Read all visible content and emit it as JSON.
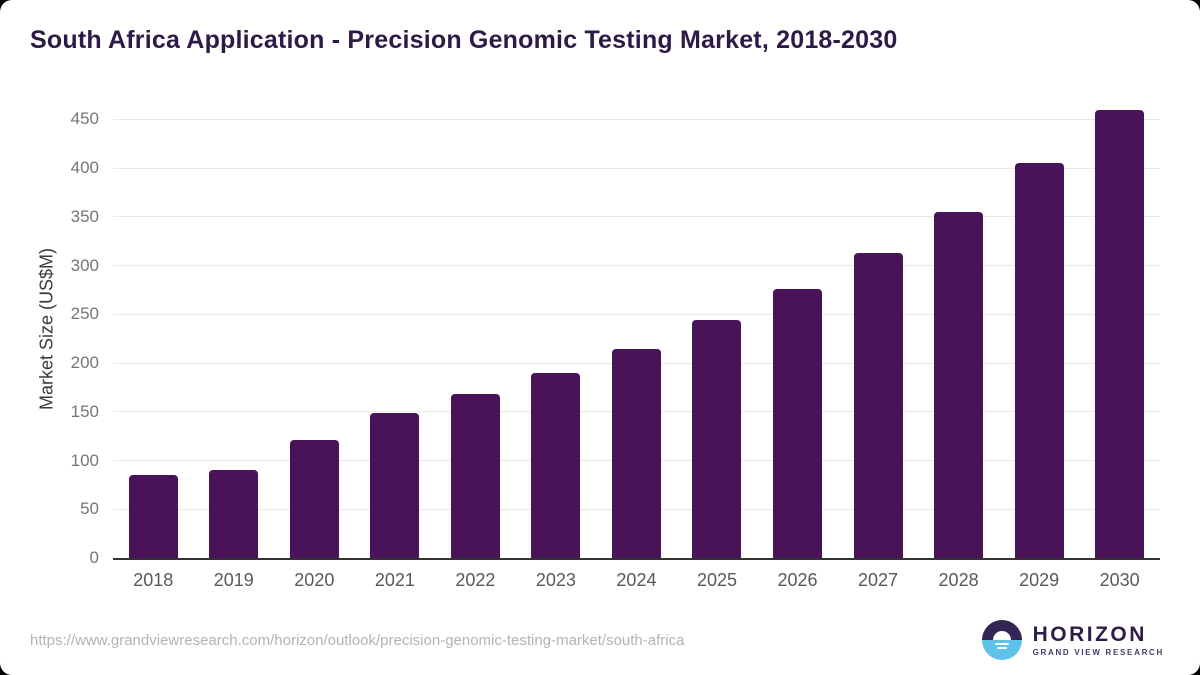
{
  "page": {
    "source_url": "https://www.grandviewresearch.com/horizon/outlook/precision-genomic-testing-market/south-africa"
  },
  "logo": {
    "name": "HORIZON",
    "subtitle": "GRAND VIEW RESEARCH",
    "icon": "sunset-over-water-icon"
  },
  "colors": {
    "bar": "#4a1259",
    "title_text": "#2e1a47",
    "axis_line": "#333333",
    "gridline": "#e9e9e9",
    "y_tick_text": "#757575",
    "x_tick_text": "#595959",
    "url_text": "#b3b3b3",
    "logo_purple": "#332655",
    "logo_blue": "#5ec3ea"
  },
  "chart_data": {
    "type": "bar",
    "title": "South Africa Application - Precision Genomic Testing Market, 2018-2030",
    "xlabel": "",
    "ylabel": "Market Size (US$M)",
    "categories": [
      "2018",
      "2019",
      "2020",
      "2021",
      "2022",
      "2023",
      "2024",
      "2025",
      "2026",
      "2027",
      "2028",
      "2029",
      "2030"
    ],
    "values": [
      85,
      90,
      121,
      149,
      168,
      190,
      215,
      244,
      276,
      313,
      355,
      405,
      460
    ],
    "yticks": [
      0,
      50,
      100,
      150,
      200,
      250,
      300,
      350,
      400,
      450
    ],
    "ylim": [
      0,
      473
    ],
    "grid": "horizontal",
    "legend": "none",
    "bar_color": "#4a1259"
  }
}
